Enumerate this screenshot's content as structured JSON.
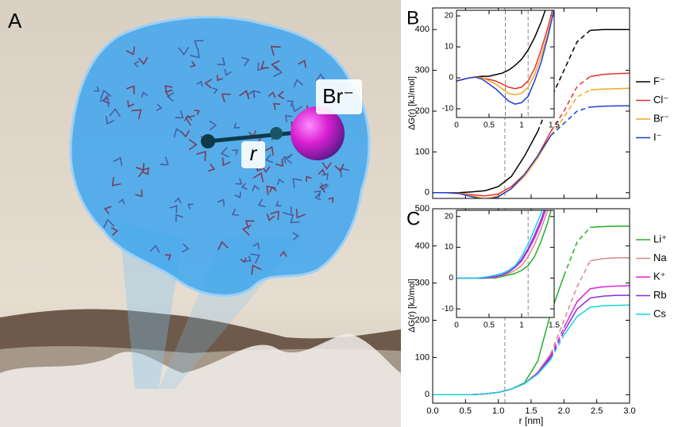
{
  "panel_a": {
    "label": "A",
    "ion_label": "Br⁻",
    "distance_label": "r"
  },
  "chart_data": [
    {
      "type": "line",
      "panel_label": "B",
      "ylabel": "ΔG(r) [kJ/mol]",
      "x": [
        0,
        0.2,
        0.4,
        0.6,
        0.8,
        1.0,
        1.2,
        1.4,
        1.6,
        1.8,
        2.0,
        2.2,
        2.4,
        2.6,
        2.8,
        3.0
      ],
      "xlim": [
        0,
        3
      ],
      "xticks": [
        0,
        0.5,
        1,
        1.5,
        2,
        2.5,
        3
      ],
      "show_xtick_labels": false,
      "ylim": [
        -14,
        453
      ],
      "yticks": [
        0,
        100,
        200,
        300,
        400
      ],
      "vlines": [
        1.1
      ],
      "series": [
        {
          "name": "F⁻",
          "color": "#000000",
          "dashed": [
            1.55,
            2.35
          ],
          "values": [
            0,
            0,
            0,
            2,
            5,
            15,
            40,
            90,
            150,
            230,
            300,
            370,
            398,
            400,
            400,
            400
          ]
        },
        {
          "name": "Cl⁻",
          "color": "#e8302a",
          "dashed": [
            1.75,
            2.35
          ],
          "values": [
            0,
            0,
            -1,
            -5,
            -8,
            -3,
            15,
            45,
            90,
            150,
            200,
            260,
            285,
            290,
            292,
            293
          ]
        },
        {
          "name": "Br⁻",
          "color": "#f5a623",
          "dashed": [
            1.75,
            2.35
          ],
          "values": [
            0,
            0,
            -1,
            -8,
            -15,
            -8,
            10,
            40,
            85,
            140,
            185,
            235,
            252,
            254,
            255,
            256
          ]
        },
        {
          "name": "I⁻",
          "color": "#1f3fd6",
          "dashed": [
            1.75,
            2.35
          ],
          "values": [
            0,
            0,
            -2,
            -10,
            -18,
            -10,
            10,
            45,
            90,
            140,
            170,
            200,
            210,
            212,
            213,
            213
          ]
        }
      ],
      "inset": {
        "type": "line",
        "x": [
          0,
          0.1,
          0.2,
          0.3,
          0.4,
          0.5,
          0.6,
          0.7,
          0.8,
          0.9,
          1.0,
          1.1,
          1.2,
          1.3,
          1.4,
          1.5
        ],
        "xlim": [
          0,
          1.5
        ],
        "xticks": [
          0,
          0.5,
          1,
          1.5
        ],
        "ylim": [
          -12.8,
          21.8
        ],
        "yticks": [
          -10,
          0,
          10,
          20
        ],
        "vlines": [
          0.75,
          1.1
        ],
        "series": [
          {
            "color": "#000000",
            "values": [
              -1,
              -0.5,
              0,
              0.3,
              0.5,
              0.5,
              1,
              1.5,
              2.5,
              4,
              6,
              9,
              13,
              18,
              24,
              30
            ]
          },
          {
            "color": "#e8302a",
            "values": [
              -1,
              -0.5,
              0,
              0.3,
              0,
              -0.5,
              -1,
              -2,
              -3,
              -3.5,
              -3,
              -1,
              3,
              9,
              16,
              24
            ]
          },
          {
            "color": "#f5a623",
            "values": [
              -1,
              -0.5,
              0,
              0.2,
              0,
              -1,
              -2,
              -3.5,
              -5,
              -5.5,
              -5,
              -3,
              1,
              7,
              14,
              22
            ]
          },
          {
            "color": "#1f3fd6",
            "values": [
              -1,
              -0.5,
              0,
              0.2,
              -0.5,
              -2,
              -3.5,
              -5.5,
              -7.5,
              -8.5,
              -8,
              -6,
              -1,
              5,
              13,
              22
            ]
          }
        ]
      }
    },
    {
      "type": "line",
      "panel_label": "C",
      "ylabel": "ΔG(r) [kJ/mol]",
      "xlabel": "r [nm]",
      "x": [
        0,
        0.2,
        0.4,
        0.6,
        0.8,
        1.0,
        1.2,
        1.4,
        1.6,
        1.8,
        2.0,
        2.2,
        2.4,
        2.6,
        2.8,
        3.0
      ],
      "xlim": [
        0,
        3
      ],
      "xticks": [
        {
          "value": 0,
          "label": "0.0"
        },
        {
          "value": 0.5,
          "label": "0.5"
        },
        {
          "value": 1,
          "label": "1.0"
        },
        {
          "value": 1.5,
          "label": "1.5"
        },
        {
          "value": 2,
          "label": "2.0"
        },
        {
          "value": 2.5,
          "label": "2.5"
        },
        {
          "value": 3,
          "label": "3.0"
        }
      ],
      "ylim": [
        -23,
        500
      ],
      "yticks": [
        0,
        100,
        200,
        300,
        400,
        500
      ],
      "vlines": [
        1.1
      ],
      "series": [
        {
          "name": "Li⁺",
          "color": "#22b02a",
          "dashed": [
            1.95,
            2.35
          ],
          "values": [
            0,
            0,
            0,
            0,
            2,
            6,
            15,
            32,
            90,
            220,
            320,
            410,
            450,
            452,
            453,
            453
          ]
        },
        {
          "name": "Na",
          "color": "#d08a8a",
          "dashed": [
            1.75,
            2.35
          ],
          "values": [
            0,
            0,
            0,
            0,
            2,
            6,
            15,
            30,
            60,
            110,
            200,
            290,
            360,
            366,
            368,
            368
          ]
        },
        {
          "name": "K⁺",
          "color": "#e020e0",
          "dashed": [
            1.75,
            2.1
          ],
          "values": [
            0,
            0,
            0,
            0,
            2,
            6,
            15,
            30,
            58,
            105,
            180,
            250,
            285,
            290,
            292,
            293
          ]
        },
        {
          "name": "Rb",
          "color": "#8a2be2",
          "dashed": [
            1.75,
            2.1
          ],
          "values": [
            0,
            0,
            0,
            0,
            2,
            6,
            15,
            30,
            56,
            100,
            170,
            230,
            260,
            265,
            267,
            267
          ]
        },
        {
          "name": "Cs",
          "color": "#14d4e0",
          "dashed": [
            1.75,
            2.1
          ],
          "values": [
            0,
            0,
            0,
            0,
            2,
            6,
            15,
            30,
            55,
            95,
            160,
            210,
            235,
            239,
            240,
            241
          ]
        }
      ],
      "inset": {
        "type": "line",
        "x": [
          0,
          0.1,
          0.2,
          0.3,
          0.4,
          0.5,
          0.6,
          0.7,
          0.8,
          0.9,
          1.0,
          1.1,
          1.2,
          1.3,
          1.4,
          1.5
        ],
        "xlim": [
          0,
          1.5
        ],
        "xticks": [
          0,
          0.5,
          1,
          1.5
        ],
        "ylim": [
          -12.8,
          22
        ],
        "yticks": [
          -10,
          0,
          10,
          20
        ],
        "vlines": [
          1.1
        ],
        "series": [
          {
            "color": "#22b02a",
            "values": [
              0,
              0,
              0,
              0,
              0,
              0,
              0,
              0.5,
              1,
              1.5,
              2.5,
              4,
              7,
              12,
              18,
              26
            ]
          },
          {
            "color": "#d08a8a",
            "values": [
              0,
              0,
              0,
              0,
              0,
              0,
              0.3,
              0.8,
              1.5,
              2.5,
              4,
              7,
              11,
              16,
              22,
              28
            ]
          },
          {
            "color": "#e020e0",
            "values": [
              0,
              0,
              0,
              0,
              0,
              0.2,
              0.5,
              1,
              2,
              3.5,
              5.5,
              9,
              13,
              18,
              24,
              30
            ]
          },
          {
            "color": "#8a2be2",
            "values": [
              0,
              0,
              0,
              0,
              0,
              0.2,
              0.5,
              1,
              2,
              3.5,
              6,
              9.5,
              14,
              19,
              25,
              31
            ]
          },
          {
            "color": "#14d4e0",
            "values": [
              0,
              0,
              0,
              0,
              0.2,
              0.5,
              1,
              1.5,
              2.5,
              4,
              7,
              11,
              16,
              21,
              27,
              33
            ]
          }
        ]
      }
    }
  ]
}
